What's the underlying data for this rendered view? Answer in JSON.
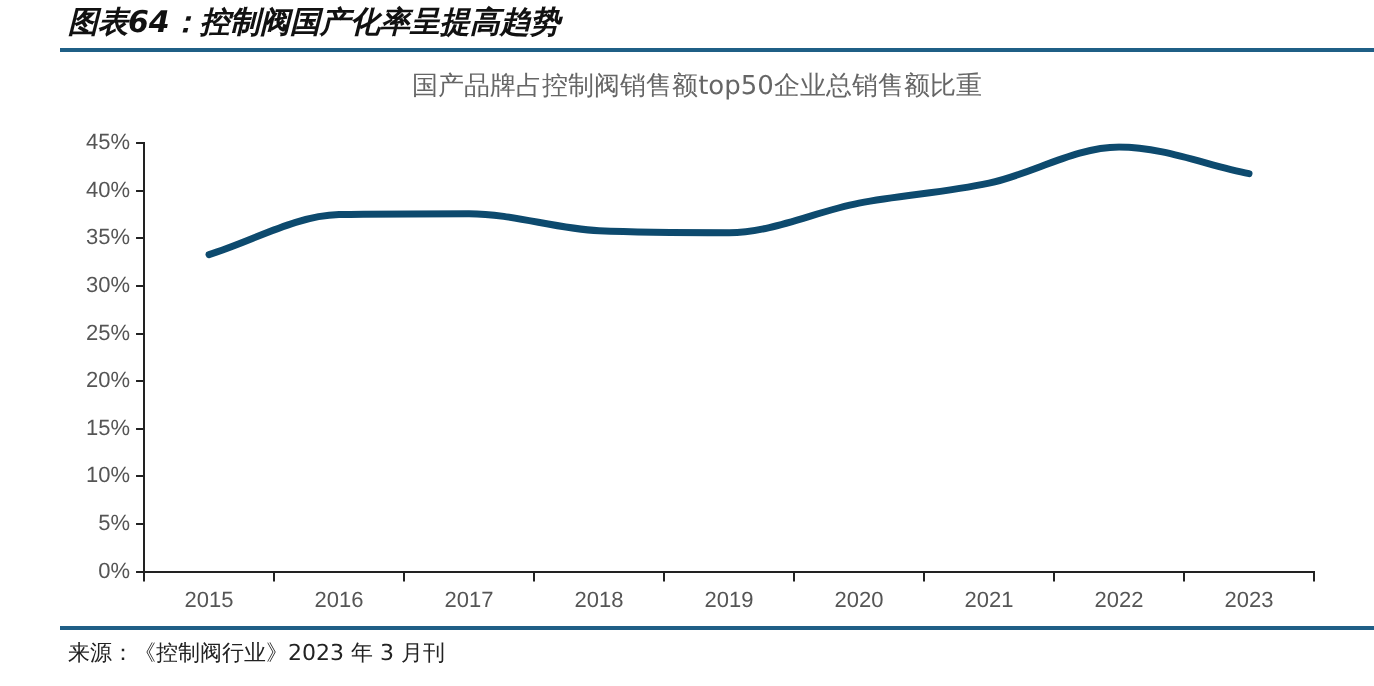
{
  "chart_data": {
    "type": "line",
    "title": "图表64：控制阀国产化率呈提高趋势",
    "subtitle": "国产品牌占控制阀销售额top50企业总销售额比重",
    "categories": [
      "2015",
      "2016",
      "2017",
      "2018",
      "2019",
      "2020",
      "2021",
      "2022",
      "2023"
    ],
    "series": [
      {
        "color": "#0d4a6e",
        "values": [
          33.3,
          37.5,
          37.6,
          35.8,
          35.6,
          38.7,
          40.8,
          44.6,
          41.8
        ]
      }
    ],
    "ylim": [
      0,
      45
    ],
    "yticks": [
      {
        "value": 0,
        "label": "0%"
      },
      {
        "value": 5,
        "label": "5%"
      },
      {
        "value": 10,
        "label": "10%"
      },
      {
        "value": 15,
        "label": "15%"
      },
      {
        "value": 20,
        "label": "20%"
      },
      {
        "value": 25,
        "label": "25%"
      },
      {
        "value": 30,
        "label": "30%"
      },
      {
        "value": 35,
        "label": "35%"
      },
      {
        "value": 40,
        "label": "40%"
      },
      {
        "value": 45,
        "label": "45%"
      }
    ],
    "grid": false,
    "legend": false,
    "marker": "none",
    "line_style": "solid",
    "annotations": [
      "来源：《控制阀行业》2023 年 3 月刊"
    ]
  }
}
